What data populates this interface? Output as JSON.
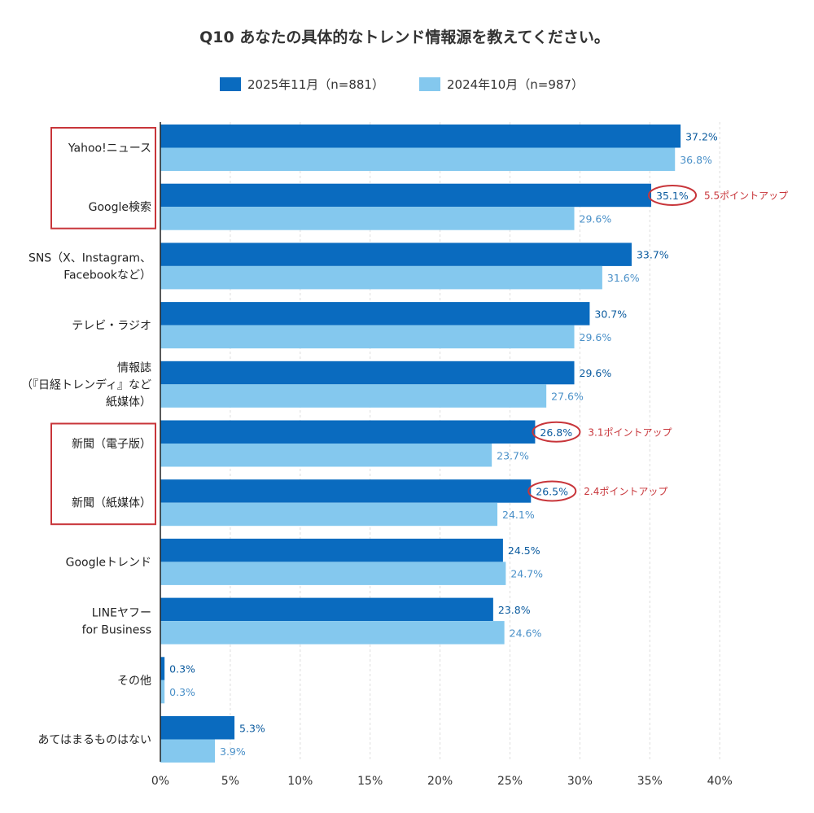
{
  "chart_data": {
    "type": "bar",
    "orientation": "horizontal",
    "title": "Q10 あなたの具体的なトレンド情報源を教えてください。",
    "categories": [
      [
        "Yahoo!ニュース"
      ],
      [
        "Google検索"
      ],
      [
        "SNS（X、Instagram、",
        "Facebookなど）"
      ],
      [
        "テレビ・ラジオ"
      ],
      [
        "情報誌",
        "（『日経トレンディ』など",
        "紙媒体）"
      ],
      [
        "新聞（電子版）"
      ],
      [
        "新聞（紙媒体）"
      ],
      [
        "Googleトレンド"
      ],
      [
        "LINEヤフー",
        "for Business"
      ],
      [
        "その他"
      ],
      [
        "あてはまるものはない"
      ]
    ],
    "series": [
      {
        "name": "2025年11月（n=881）",
        "color": "#0a6bbf",
        "label_color": "#0a5a9e",
        "values": [
          37.2,
          35.1,
          33.7,
          30.7,
          29.6,
          26.8,
          26.5,
          24.5,
          23.8,
          0.3,
          5.3
        ]
      },
      {
        "name": "2024年10月（n=987）",
        "color": "#84c8ee",
        "label_color": "#4a90c8",
        "values": [
          36.8,
          29.6,
          31.6,
          29.6,
          27.6,
          23.7,
          24.1,
          24.7,
          24.6,
          0.3,
          3.9
        ]
      }
    ],
    "value_suffix": "%",
    "xlim": [
      0,
      40
    ],
    "xticks": [
      0,
      5,
      10,
      15,
      20,
      25,
      30,
      35,
      40
    ],
    "tick_suffix": "%",
    "grid": true,
    "legend_position": "top-center",
    "annotations": [
      {
        "category_index": 1,
        "text": "5.5ポイントアップ"
      },
      {
        "category_index": 5,
        "text": "3.1ポイントアップ"
      },
      {
        "category_index": 6,
        "text": "2.4ポイントアップ"
      }
    ],
    "highlight_groups": [
      [
        0,
        1
      ],
      [
        5,
        6
      ]
    ],
    "colors": {
      "highlight": "#c8353a",
      "axis": "#222222",
      "grid": "#dddddd"
    }
  }
}
